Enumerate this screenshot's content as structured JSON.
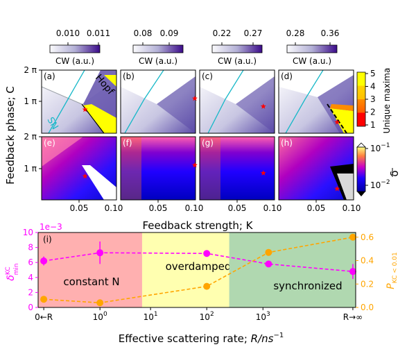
{
  "chart_data": {
    "type": "multi-panel",
    "figure": {
      "y_label_top": "Feedback phase; C",
      "x_label_top": "Feedback strength; K",
      "x_label_bottom": "Effective scattering rate; ",
      "x_label_bottom_math": "R/ns",
      "x_label_bottom_exp": "−1"
    },
    "heatmap_panels": {
      "x_range": [
        0.0,
        0.1
      ],
      "x_ticks": [
        "0.05",
        "0.10"
      ],
      "y_range_label": "C from 0 to 2π",
      "y_ticks": [
        "1 π",
        "2 π"
      ],
      "top_row": [
        {
          "label": "(a)",
          "quantity": "CW (a.u.)",
          "colorbar_ticks": [
            "0.010",
            "0.011"
          ],
          "curve_labels": [
            "Hopf",
            "SN"
          ],
          "marker": {
            "K": 0.058,
            "C_pi": 0.75
          }
        },
        {
          "label": "(b)",
          "quantity": "CW (a.u.)",
          "colorbar_ticks": [
            "0.08",
            "0.09"
          ],
          "marker": {
            "K": 0.1,
            "C_pi": 1.1
          }
        },
        {
          "label": "(c)",
          "quantity": "CW (a.u.)",
          "colorbar_ticks": [
            "0.22",
            "0.27"
          ],
          "marker": {
            "K": 0.085,
            "C_pi": 0.85
          }
        },
        {
          "label": "(d)",
          "quantity": "CW (a.u.)",
          "colorbar_ticks": [
            "0.28",
            "0.36"
          ],
          "marker": {
            "K": 0.078,
            "C_pi": 0.35
          }
        }
      ],
      "bottom_row": [
        {
          "label": "(e)",
          "marker": {
            "K": 0.058,
            "C_pi": 0.75
          }
        },
        {
          "label": "(f)",
          "marker": {
            "K": 0.1,
            "C_pi": 1.1
          }
        },
        {
          "label": "(g)",
          "marker": {
            "K": 0.085,
            "C_pi": 0.85
          }
        },
        {
          "label": "(h)",
          "marker": {
            "K": 0.078,
            "C_pi": 0.35
          }
        }
      ],
      "unique_maxima_colorbar": {
        "label": "Unique maxima",
        "ticks": [
          "1",
          "2",
          "3",
          "4",
          "5"
        ]
      },
      "delta_colorbar": {
        "label": "δ",
        "ticks": [
          "10",
          "10"
        ],
        "tick_exponents": [
          "−1",
          "−2"
        ]
      }
    },
    "panel_i": {
      "label": "(i)",
      "type": "line",
      "x_positions": [
        0,
        1,
        2,
        3,
        4
      ],
      "x_tick_labels": [
        "0←R",
        "10",
        "10",
        "10",
        "R→∞"
      ],
      "x_tick_exponents": [
        "",
        "0",
        "1",
        "2",
        "3"
      ],
      "left_axis": {
        "label": "δ",
        "label_superscript": "KC",
        "label_subscript": "min",
        "ylim": [
          0,
          10
        ],
        "ticks": [
          "0",
          "2",
          "4",
          "6",
          "8",
          "10"
        ],
        "scale_factor": "1e−3",
        "color": "#ff00ff"
      },
      "right_axis": {
        "label": "P",
        "label_subscript": "KC < 0.01",
        "ylim": [
          0,
          0.64
        ],
        "ticks": [
          "0.0",
          "0.2",
          "0.4",
          "0.6"
        ],
        "color": "#ffa500"
      },
      "series": [
        {
          "name": "delta_min_KC",
          "axis": "left",
          "color": "#ff00ff",
          "x": [
            0,
            1.0,
            2.9,
            4.0,
            5.5
          ],
          "values": [
            6.2,
            7.3,
            7.2,
            5.8,
            4.8
          ],
          "errors": [
            0.6,
            1.5,
            0.3,
            0.4,
            1.0
          ]
        },
        {
          "name": "P_KC_lt_0.01",
          "axis": "right",
          "color": "#ffa500",
          "x": [
            0,
            1.0,
            2.9,
            4.0,
            5.5
          ],
          "values": [
            0.07,
            0.04,
            0.18,
            0.47,
            0.6
          ]
        }
      ],
      "regions": [
        {
          "label": "constant N",
          "x_start": -0.1,
          "x_end": 1.75,
          "color": "#ffb0b0"
        },
        {
          "label": "overdamped",
          "x_start": 1.75,
          "x_end": 3.3,
          "color": "#ffffb0"
        },
        {
          "label": "synchronized",
          "x_start": 3.3,
          "x_end": 5.55,
          "color": "#b0d8b0"
        }
      ]
    }
  }
}
